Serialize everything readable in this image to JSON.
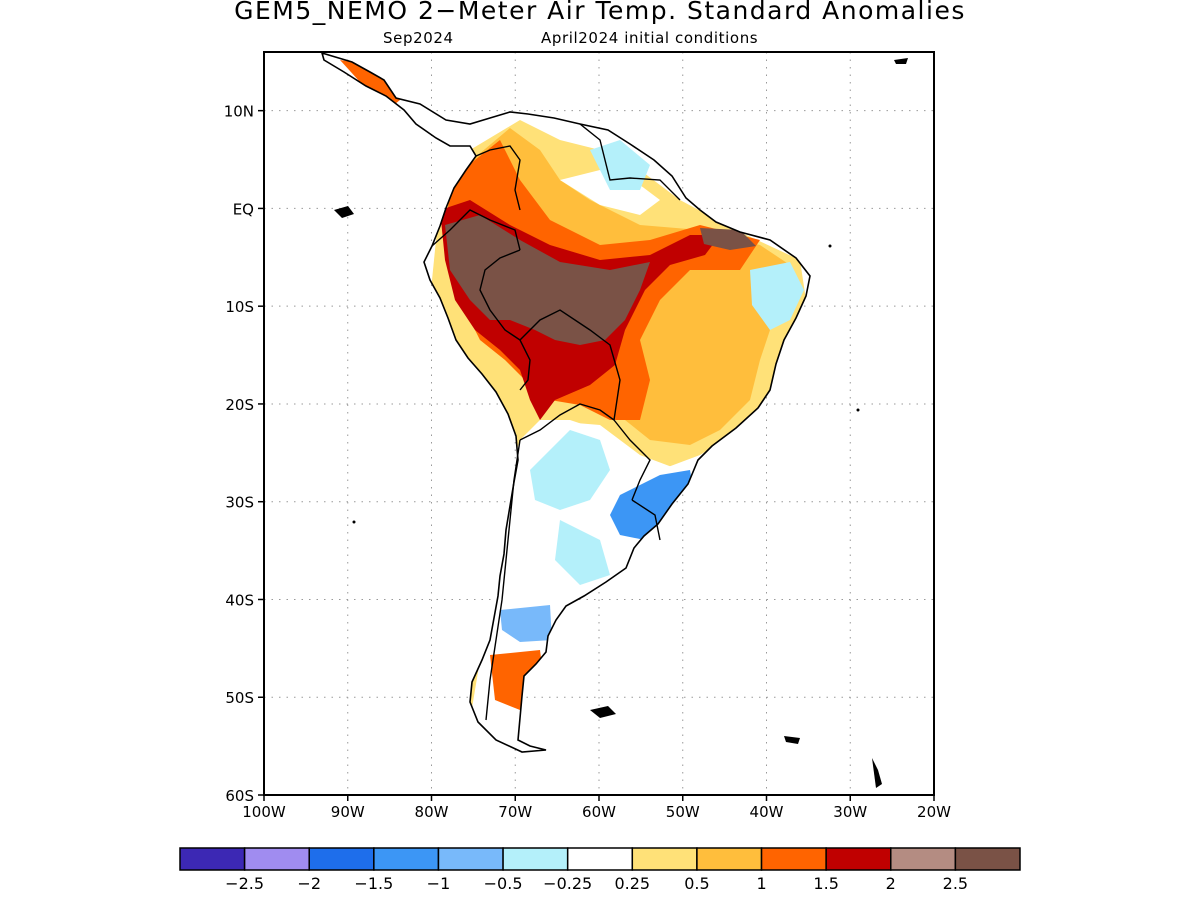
{
  "title": "GEM5_NEMO 2−Meter Air Temp. Standard Anomalies",
  "subtitle": {
    "valid": "Sep2024",
    "init": "April2024 initial conditions"
  },
  "map": {
    "lon_range": [
      -100,
      -20
    ],
    "lat_range": [
      -60,
      16
    ],
    "lat_ticks": [
      {
        "lat": 10,
        "label": "10N"
      },
      {
        "lat": 0,
        "label": "EQ"
      },
      {
        "lat": -10,
        "label": "10S"
      },
      {
        "lat": -20,
        "label": "20S"
      },
      {
        "lat": -30,
        "label": "30S"
      },
      {
        "lat": -40,
        "label": "40S"
      },
      {
        "lat": -50,
        "label": "50S"
      },
      {
        "lat": -60,
        "label": "60S"
      }
    ],
    "lon_ticks": [
      {
        "lon": -100,
        "label": "100W"
      },
      {
        "lon": -90,
        "label": "90W"
      },
      {
        "lon": -80,
        "label": "80W"
      },
      {
        "lon": -70,
        "label": "70W"
      },
      {
        "lon": -60,
        "label": "60W"
      },
      {
        "lon": -50,
        "label": "50W"
      },
      {
        "lon": -40,
        "label": "40W"
      },
      {
        "lon": -30,
        "label": "30W"
      },
      {
        "lon": -20,
        "label": "20W"
      }
    ]
  },
  "colorbar": {
    "colors": [
      "#3c28b4",
      "#a08cf0",
      "#1e6eeb",
      "#3c96f5",
      "#78b9fa",
      "#b4f0fa",
      "#ffffff",
      "#ffe178",
      "#ffbe3c",
      "#ff6400",
      "#c00000",
      "#b48c82",
      "#7a5246"
    ],
    "labels": [
      "−2.5",
      "−2",
      "−1.5",
      "−1",
      "−0.5",
      "−0.25",
      "0.25",
      "0.5",
      "1",
      "1.5",
      "2",
      "2.5"
    ]
  }
}
